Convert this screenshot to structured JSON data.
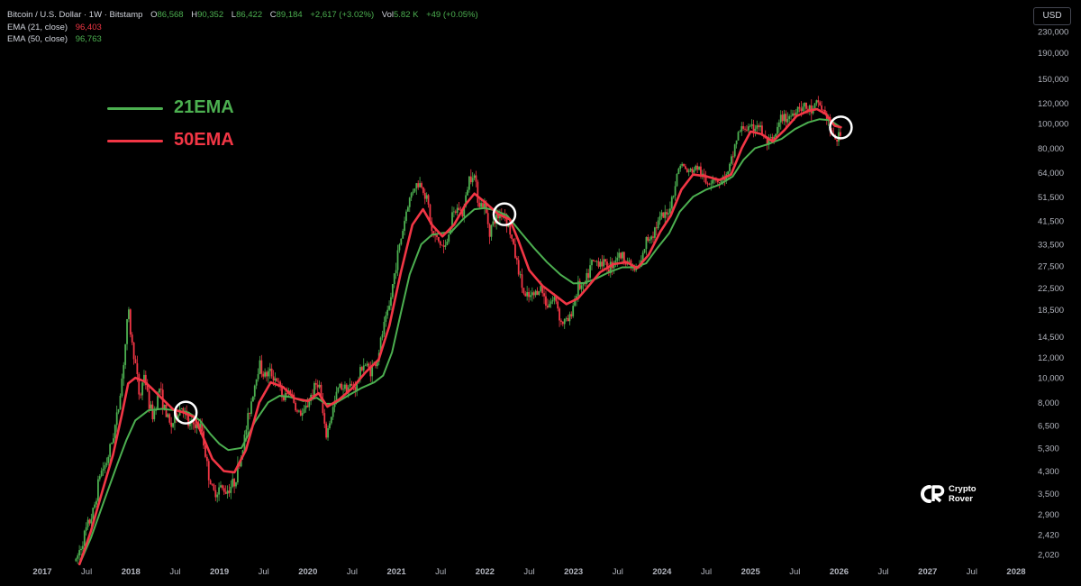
{
  "header": {
    "symbol": "Bitcoin / U.S. Dollar · 1W · Bitstamp",
    "o_label": "O",
    "o_val": "86,568",
    "h_label": "H",
    "h_val": "90,352",
    "l_label": "L",
    "l_val": "86,422",
    "c_label": "C",
    "c_val": "89,184",
    "change": "+2,617 (+3.02%)",
    "vol_label": "Vol",
    "vol_val": "5.82 K",
    "vol_change": "+49 (+0.05%)",
    "ema21_label": "EMA (21, close)",
    "ema21_val": "96,403",
    "ema50_label": "EMA (50, close)",
    "ema50_val": "96,763"
  },
  "currency": "USD",
  "legend": {
    "green": "21EMA",
    "red": "50EMA"
  },
  "watermark": {
    "line1": "Crypto",
    "line2": "Rover"
  },
  "colors": {
    "up": "#4caf50",
    "down": "#f23645",
    "ema21": "#4caf50",
    "ema50": "#f23645",
    "background": "#000000",
    "circle": "#ffffff"
  },
  "chart_data": {
    "type": "line",
    "scale": "log",
    "grid": false,
    "y_ticks": [
      2020,
      2420,
      2900,
      3500,
      4300,
      5300,
      6500,
      8000,
      10000,
      12000,
      14500,
      18500,
      22500,
      27500,
      33500,
      41500,
      51500,
      64000,
      80000,
      100000,
      120000,
      150000,
      190000,
      230000
    ],
    "x_ticks": [
      {
        "t": 2017.0,
        "label": "2017"
      },
      {
        "t": 2017.5,
        "label": "Jul"
      },
      {
        "t": 2018.0,
        "label": "2018"
      },
      {
        "t": 2018.5,
        "label": "Jul"
      },
      {
        "t": 2019.0,
        "label": "2019"
      },
      {
        "t": 2019.5,
        "label": "Jul"
      },
      {
        "t": 2020.0,
        "label": "2020"
      },
      {
        "t": 2020.5,
        "label": "Jul"
      },
      {
        "t": 2021.0,
        "label": "2021"
      },
      {
        "t": 2021.5,
        "label": "Jul"
      },
      {
        "t": 2022.0,
        "label": "2022"
      },
      {
        "t": 2022.5,
        "label": "Jul"
      },
      {
        "t": 2023.0,
        "label": "2023"
      },
      {
        "t": 2023.5,
        "label": "Jul"
      },
      {
        "t": 2024.0,
        "label": "2024"
      },
      {
        "t": 2024.5,
        "label": "Jul"
      },
      {
        "t": 2025.0,
        "label": "2025"
      },
      {
        "t": 2025.5,
        "label": "Jul"
      },
      {
        "t": 2026.0,
        "label": "2026"
      },
      {
        "t": 2026.5,
        "label": "Jul"
      },
      {
        "t": 2027.0,
        "label": "2027"
      },
      {
        "t": 2027.5,
        "label": "Jul"
      },
      {
        "t": 2028.0,
        "label": "2028"
      }
    ],
    "price": [
      [
        2017.38,
        1900
      ],
      [
        2017.42,
        2100
      ],
      [
        2017.5,
        2550
      ],
      [
        2017.58,
        3000
      ],
      [
        2017.65,
        4200
      ],
      [
        2017.72,
        4600
      ],
      [
        2017.78,
        5500
      ],
      [
        2017.85,
        7200
      ],
      [
        2017.9,
        10000
      ],
      [
        2017.95,
        15000
      ],
      [
        2017.97,
        19000
      ],
      [
        2018.0,
        14500
      ],
      [
        2018.05,
        11500
      ],
      [
        2018.1,
        8200
      ],
      [
        2018.15,
        10500
      ],
      [
        2018.2,
        8000
      ],
      [
        2018.25,
        7000
      ],
      [
        2018.32,
        9200
      ],
      [
        2018.38,
        7500
      ],
      [
        2018.45,
        6400
      ],
      [
        2018.52,
        7200
      ],
      [
        2018.58,
        7800
      ],
      [
        2018.65,
        6500
      ],
      [
        2018.72,
        6600
      ],
      [
        2018.8,
        6300
      ],
      [
        2018.87,
        4300
      ],
      [
        2018.93,
        3500
      ],
      [
        2019.0,
        3700
      ],
      [
        2019.08,
        3600
      ],
      [
        2019.17,
        3900
      ],
      [
        2019.25,
        5000
      ],
      [
        2019.35,
        7800
      ],
      [
        2019.45,
        11500
      ],
      [
        2019.5,
        10200
      ],
      [
        2019.58,
        10500
      ],
      [
        2019.65,
        9800
      ],
      [
        2019.72,
        8200
      ],
      [
        2019.8,
        9000
      ],
      [
        2019.88,
        7300
      ],
      [
        2019.95,
        7200
      ],
      [
        2020.05,
        8800
      ],
      [
        2020.12,
        9800
      ],
      [
        2020.2,
        5800
      ],
      [
        2020.28,
        7500
      ],
      [
        2020.35,
        9300
      ],
      [
        2020.45,
        9200
      ],
      [
        2020.55,
        9300
      ],
      [
        2020.62,
        11500
      ],
      [
        2020.7,
        10700
      ],
      [
        2020.78,
        11600
      ],
      [
        2020.85,
        15500
      ],
      [
        2020.92,
        19000
      ],
      [
        2021.0,
        29000
      ],
      [
        2021.05,
        35000
      ],
      [
        2021.12,
        47000
      ],
      [
        2021.2,
        57000
      ],
      [
        2021.28,
        58000
      ],
      [
        2021.35,
        50000
      ],
      [
        2021.4,
        37000
      ],
      [
        2021.5,
        33500
      ],
      [
        2021.55,
        32000
      ],
      [
        2021.62,
        42000
      ],
      [
        2021.7,
        47000
      ],
      [
        2021.75,
        43500
      ],
      [
        2021.82,
        61000
      ],
      [
        2021.87,
        65000
      ],
      [
        2021.93,
        49000
      ],
      [
        2022.0,
        47000
      ],
      [
        2022.05,
        38000
      ],
      [
        2022.12,
        42000
      ],
      [
        2022.2,
        45500
      ],
      [
        2022.27,
        39000
      ],
      [
        2022.35,
        29500
      ],
      [
        2022.45,
        20500
      ],
      [
        2022.55,
        21000
      ],
      [
        2022.62,
        23000
      ],
      [
        2022.7,
        19500
      ],
      [
        2022.8,
        20500
      ],
      [
        2022.86,
        16500
      ],
      [
        2022.95,
        16800
      ],
      [
        2023.05,
        23000
      ],
      [
        2023.12,
        22500
      ],
      [
        2023.2,
        28000
      ],
      [
        2023.3,
        29000
      ],
      [
        2023.4,
        27000
      ],
      [
        2023.5,
        30500
      ],
      [
        2023.6,
        29300
      ],
      [
        2023.68,
        26500
      ],
      [
        2023.75,
        27000
      ],
      [
        2023.82,
        34500
      ],
      [
        2023.9,
        37500
      ],
      [
        2023.98,
        42500
      ],
      [
        2024.05,
        43000
      ],
      [
        2024.12,
        52000
      ],
      [
        2024.2,
        70000
      ],
      [
        2024.3,
        64000
      ],
      [
        2024.4,
        67500
      ],
      [
        2024.5,
        58000
      ],
      [
        2024.58,
        62000
      ],
      [
        2024.65,
        59000
      ],
      [
        2024.75,
        63000
      ],
      [
        2024.85,
        90000
      ],
      [
        2024.92,
        97000
      ],
      [
        2025.0,
        94000
      ],
      [
        2025.08,
        100000
      ],
      [
        2025.18,
        84000
      ],
      [
        2025.25,
        84000
      ],
      [
        2025.35,
        105000
      ],
      [
        2025.45,
        107000
      ],
      [
        2025.55,
        118000
      ],
      [
        2025.62,
        115000
      ],
      [
        2025.7,
        112000
      ],
      [
        2025.77,
        121000
      ],
      [
        2025.82,
        112000
      ],
      [
        2025.88,
        103000
      ],
      [
        2025.92,
        88000
      ],
      [
        2025.97,
        87500
      ],
      [
        2026.02,
        89184
      ]
    ],
    "series": [
      {
        "name": "21EMA",
        "color": "#4caf50",
        "values": [
          [
            2017.42,
            1850
          ],
          [
            2017.55,
            2350
          ],
          [
            2017.7,
            3300
          ],
          [
            2017.85,
            4600
          ],
          [
            2017.95,
            5700
          ],
          [
            2018.05,
            6800
          ],
          [
            2018.2,
            7450
          ],
          [
            2018.35,
            7550
          ],
          [
            2018.5,
            7450
          ],
          [
            2018.65,
            7300
          ],
          [
            2018.78,
            6800
          ],
          [
            2018.9,
            6000
          ],
          [
            2019.0,
            5500
          ],
          [
            2019.1,
            5200
          ],
          [
            2019.25,
            5300
          ],
          [
            2019.4,
            6700
          ],
          [
            2019.55,
            8000
          ],
          [
            2019.68,
            8500
          ],
          [
            2019.8,
            8400
          ],
          [
            2019.95,
            8100
          ],
          [
            2020.1,
            8350
          ],
          [
            2020.2,
            7900
          ],
          [
            2020.3,
            7900
          ],
          [
            2020.45,
            8500
          ],
          [
            2020.6,
            9100
          ],
          [
            2020.75,
            9600
          ],
          [
            2020.85,
            10200
          ],
          [
            2020.95,
            12600
          ],
          [
            2021.05,
            18000
          ],
          [
            2021.15,
            25500
          ],
          [
            2021.28,
            33500
          ],
          [
            2021.4,
            36500
          ],
          [
            2021.5,
            37000
          ],
          [
            2021.62,
            37500
          ],
          [
            2021.75,
            42000
          ],
          [
            2021.88,
            46000
          ],
          [
            2022.0,
            46500
          ],
          [
            2022.12,
            45500
          ],
          [
            2022.25,
            43500
          ],
          [
            2022.4,
            37500
          ],
          [
            2022.55,
            32500
          ],
          [
            2022.7,
            28500
          ],
          [
            2022.85,
            25500
          ],
          [
            2023.0,
            23500
          ],
          [
            2023.12,
            23600
          ],
          [
            2023.25,
            24500
          ],
          [
            2023.4,
            26000
          ],
          [
            2023.55,
            27200
          ],
          [
            2023.7,
            27200
          ],
          [
            2023.82,
            28200
          ],
          [
            2023.95,
            32500
          ],
          [
            2024.08,
            37000
          ],
          [
            2024.2,
            45000
          ],
          [
            2024.35,
            51500
          ],
          [
            2024.5,
            55000
          ],
          [
            2024.65,
            57500
          ],
          [
            2024.8,
            62000
          ],
          [
            2024.92,
            72000
          ],
          [
            2025.05,
            80000
          ],
          [
            2025.2,
            83000
          ],
          [
            2025.35,
            87000
          ],
          [
            2025.5,
            95000
          ],
          [
            2025.65,
            101000
          ],
          [
            2025.78,
            104000
          ],
          [
            2025.9,
            103000
          ],
          [
            2026.02,
            96403
          ]
        ]
      },
      {
        "name": "50EMA",
        "color": "#f23645",
        "values": [
          [
            2017.42,
            1850
          ],
          [
            2017.55,
            2500
          ],
          [
            2017.68,
            3600
          ],
          [
            2017.8,
            5000
          ],
          [
            2017.9,
            7200
          ],
          [
            2017.97,
            9500
          ],
          [
            2018.05,
            10000
          ],
          [
            2018.15,
            9700
          ],
          [
            2018.25,
            9000
          ],
          [
            2018.35,
            8300
          ],
          [
            2018.48,
            7500
          ],
          [
            2018.6,
            7300
          ],
          [
            2018.72,
            7000
          ],
          [
            2018.82,
            5800
          ],
          [
            2018.92,
            4800
          ],
          [
            2019.05,
            4300
          ],
          [
            2019.17,
            4250
          ],
          [
            2019.3,
            5200
          ],
          [
            2019.45,
            8000
          ],
          [
            2019.58,
            9600
          ],
          [
            2019.72,
            9200
          ],
          [
            2019.85,
            8300
          ],
          [
            2020.0,
            8100
          ],
          [
            2020.12,
            8700
          ],
          [
            2020.22,
            7700
          ],
          [
            2020.35,
            8200
          ],
          [
            2020.5,
            9100
          ],
          [
            2020.65,
            10500
          ],
          [
            2020.8,
            11800
          ],
          [
            2020.92,
            16000
          ],
          [
            2021.05,
            26000
          ],
          [
            2021.18,
            40000
          ],
          [
            2021.3,
            46000
          ],
          [
            2021.4,
            40000
          ],
          [
            2021.52,
            36000
          ],
          [
            2021.65,
            40000
          ],
          [
            2021.78,
            48000
          ],
          [
            2021.88,
            53000
          ],
          [
            2022.0,
            49000
          ],
          [
            2022.15,
            44000
          ],
          [
            2022.28,
            42000
          ],
          [
            2022.38,
            34500
          ],
          [
            2022.5,
            26500
          ],
          [
            2022.65,
            23000
          ],
          [
            2022.8,
            21000
          ],
          [
            2022.92,
            19500
          ],
          [
            2023.05,
            20500
          ],
          [
            2023.15,
            22500
          ],
          [
            2023.3,
            26000
          ],
          [
            2023.45,
            28000
          ],
          [
            2023.6,
            28500
          ],
          [
            2023.72,
            27000
          ],
          [
            2023.85,
            30500
          ],
          [
            2023.98,
            37500
          ],
          [
            2024.1,
            43500
          ],
          [
            2024.22,
            55000
          ],
          [
            2024.35,
            63000
          ],
          [
            2024.5,
            62000
          ],
          [
            2024.65,
            60000
          ],
          [
            2024.78,
            63000
          ],
          [
            2024.9,
            80000
          ],
          [
            2025.0,
            93000
          ],
          [
            2025.12,
            91000
          ],
          [
            2025.25,
            85000
          ],
          [
            2025.38,
            94000
          ],
          [
            2025.52,
            107000
          ],
          [
            2025.65,
            112000
          ],
          [
            2025.75,
            114000
          ],
          [
            2025.85,
            109000
          ],
          [
            2025.95,
            98000
          ],
          [
            2026.02,
            96763
          ]
        ]
      }
    ],
    "highlights": [
      {
        "t": 2018.62,
        "price": 7300
      },
      {
        "t": 2022.22,
        "price": 44000
      },
      {
        "t": 2026.02,
        "price": 96500
      }
    ]
  }
}
